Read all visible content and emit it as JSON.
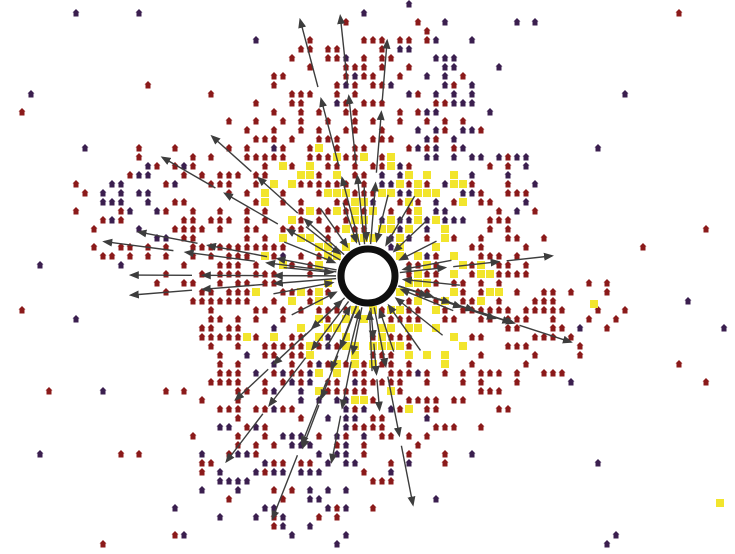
{
  "map": {
    "colors": {
      "background": "#ffffff",
      "house_red": "#8b1a1a",
      "house_purple": "#3b1f4f",
      "cell_yellow": "#f2e52d",
      "arrow": "#3d3d3d",
      "hub": "#0f0f0f"
    },
    "icons": {
      "house": "house-icon",
      "cell": "square-cell",
      "hub": "hub-ring",
      "arrow": "flow-arrow"
    },
    "legend": null
  }
}
